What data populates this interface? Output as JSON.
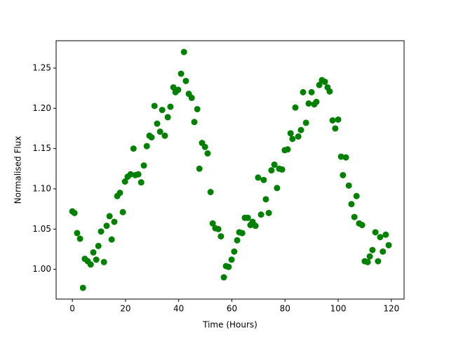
{
  "chart_data": {
    "type": "scatter",
    "xlabel": "Time (Hours)",
    "ylabel": "Normalised Flux",
    "color": "#008000",
    "x": [
      0,
      0.8,
      1.8,
      2.9,
      4,
      4.7,
      5.8,
      6.9,
      7.9,
      9,
      9.8,
      10.8,
      11.9,
      12.9,
      14,
      14.8,
      15.8,
      16.9,
      17.9,
      19,
      19.8,
      20.8,
      21.9,
      23,
      23.7,
      24.8,
      25.9,
      26.9,
      28,
      29,
      29.8,
      30.9,
      31.9,
      33,
      33.8,
      34.8,
      35.9,
      36.9,
      38,
      38.8,
      39.8,
      40.9,
      42,
      42.7,
      43.8,
      44.9,
      45.9,
      47,
      47.8,
      48.8,
      49.9,
      50.9,
      52,
      52.8,
      53.8,
      54.9,
      55.9,
      57,
      57.8,
      58.8,
      59.9,
      60.9,
      62,
      62.8,
      63.9,
      64.9,
      66,
      67,
      67.8,
      68.9,
      69.9,
      71,
      72,
      72.8,
      73.9,
      74.9,
      76,
      77,
      77.8,
      78.9,
      79.9,
      81,
      82.1,
      82.8,
      83.9,
      85,
      86,
      86.8,
      87.9,
      88.9,
      90,
      91,
      91.8,
      92.9,
      93.9,
      95,
      96,
      96.8,
      97.9,
      98.9,
      100,
      101.1,
      101.8,
      102.9,
      104,
      105,
      106.1,
      106.9,
      107.9,
      109,
      110,
      111.1,
      111.9,
      112.9,
      114,
      115,
      115.8,
      116.8,
      117.9,
      119
    ],
    "values": [
      1.072,
      1.07,
      1.045,
      1.038,
      0.977,
      1.013,
      1.01,
      1.006,
      1.021,
      1.012,
      1.029,
      1.047,
      1.009,
      1.054,
      1.066,
      1.037,
      1.059,
      1.091,
      1.095,
      1.071,
      1.109,
      1.115,
      1.118,
      1.15,
      1.117,
      1.118,
      1.108,
      1.129,
      1.153,
      1.166,
      1.164,
      1.203,
      1.181,
      1.171,
      1.198,
      1.166,
      1.189,
      1.202,
      1.226,
      1.22,
      1.223,
      1.243,
      1.27,
      1.234,
      1.218,
      1.213,
      1.183,
      1.199,
      1.125,
      1.157,
      1.152,
      1.144,
      1.096,
      1.057,
      1.051,
      1.05,
      1.041,
      0.99,
      1.004,
      1.003,
      1.012,
      1.022,
      1.036,
      1.046,
      1.045,
      1.064,
      1.064,
      1.055,
      1.059,
      1.054,
      1.114,
      1.068,
      1.111,
      1.087,
      1.07,
      1.123,
      1.13,
      1.101,
      1.125,
      1.124,
      1.148,
      1.149,
      1.169,
      1.162,
      1.201,
      1.165,
      1.173,
      1.22,
      1.182,
      1.206,
      1.22,
      1.205,
      1.208,
      1.229,
      1.235,
      1.233,
      1.226,
      1.221,
      1.185,
      1.175,
      1.186,
      1.14,
      1.117,
      1.139,
      1.104,
      1.081,
      1.065,
      1.091,
      1.057,
      1.055,
      1.01,
      1.009,
      1.016,
      1.024,
      1.046,
      1.01,
      1.04,
      1.022,
      1.043,
      1.03
    ],
    "xlim": [
      -6.1,
      124.8
    ],
    "ylim": [
      0.963,
      1.284
    ],
    "xticks": [
      0,
      20,
      40,
      60,
      80,
      100,
      120
    ],
    "yticks": [
      {
        "value": 1,
        "label": "1.00"
      },
      1.05,
      {
        "value": 1.1,
        "label": "1.10"
      },
      1.15,
      {
        "value": 1.2,
        "label": "1.20"
      },
      1.25
    ]
  }
}
